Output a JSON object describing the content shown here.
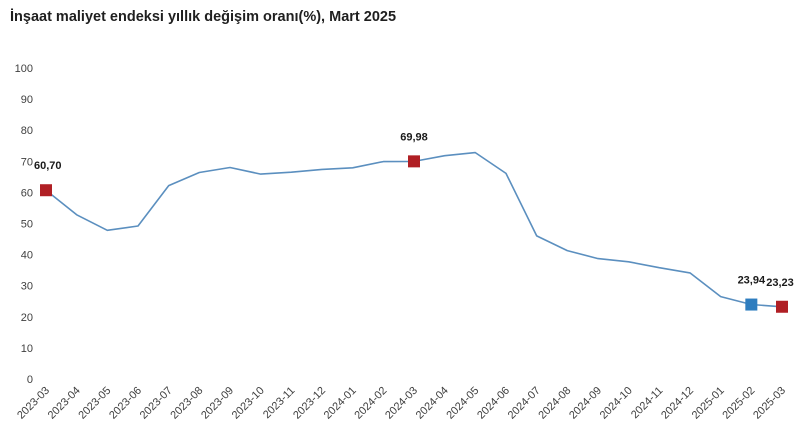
{
  "chart_data": {
    "type": "line",
    "title": "İnşaat maliyet endeksi yıllık değişim oranı(%), Mart 2025",
    "xlabel": "",
    "ylabel": "",
    "ylim": [
      0,
      100
    ],
    "yticks": [
      0,
      10,
      20,
      30,
      40,
      50,
      60,
      70,
      80,
      90,
      100
    ],
    "grid": false,
    "legend": "none",
    "categories": [
      "2023-03",
      "2023-04",
      "2023-05",
      "2023-06",
      "2023-07",
      "2023-08",
      "2023-09",
      "2023-10",
      "2023-11",
      "2023-12",
      "2024-01",
      "2024-02",
      "2024-03",
      "2024-04",
      "2024-05",
      "2024-06",
      "2024-07",
      "2024-08",
      "2024-09",
      "2024-10",
      "2024-11",
      "2024-12",
      "2025-01",
      "2025-02",
      "2025-03"
    ],
    "series": [
      {
        "values": [
          60.7,
          52.8,
          47.8,
          49.2,
          62.2,
          66.4,
          68.0,
          65.9,
          66.5,
          67.4,
          67.9,
          69.9,
          69.98,
          71.8,
          72.8,
          66.1,
          46.0,
          41.3,
          38.7,
          37.7,
          35.8,
          34.1,
          26.5,
          23.94,
          23.23
        ],
        "color": "#5b8fbf"
      }
    ],
    "markers": [
      {
        "index": 0,
        "label": "60,70",
        "color": "#b01f24"
      },
      {
        "index": 12,
        "label": "69,98",
        "color": "#b01f24"
      },
      {
        "index": 23,
        "label": "23,94",
        "color": "#2e7dbf"
      },
      {
        "index": 24,
        "label": "23,23",
        "color": "#b01f24"
      }
    ]
  }
}
